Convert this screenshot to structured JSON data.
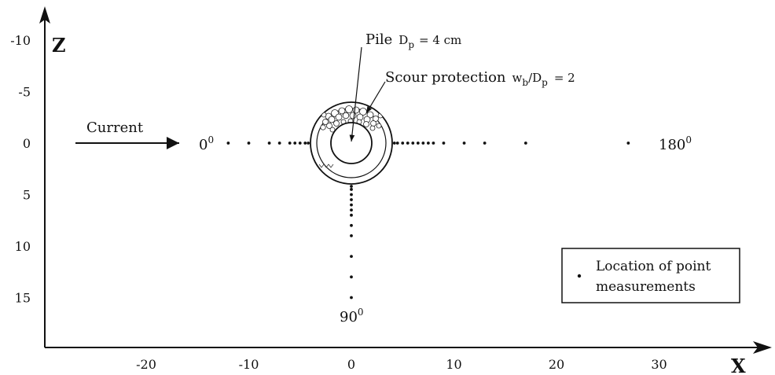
{
  "diagram": {
    "axes": {
      "x_label": "X",
      "z_label": "Z",
      "x_ticks": [
        -20,
        -10,
        0,
        10,
        20,
        30
      ],
      "z_ticks": [
        -10,
        -5,
        0,
        5,
        10,
        15
      ],
      "x_range": [
        -30,
        40
      ],
      "z_range": [
        -13,
        20
      ]
    },
    "pile": {
      "label": "Pile",
      "diameter_label": "D",
      "diameter_sub": "p",
      "diameter_value": "=  4 cm",
      "diameter_cm": 4
    },
    "scour_protection": {
      "label": "Scour protection",
      "ratio_w": "w",
      "ratio_w_sub": "b",
      "ratio_slash": "/D",
      "ratio_d_sub": "p",
      "ratio_value": "=  2"
    },
    "current_label": "Current",
    "angles": {
      "upstream": "0",
      "downstream": "180",
      "side": "90",
      "superscript": "0"
    },
    "legend": {
      "line1": "Location of point",
      "line2": "measurements"
    },
    "measurements": {
      "upstream_x": [
        -12,
        -10,
        -8,
        -7,
        -6,
        -5.5,
        -5,
        -4.5,
        -4.2
      ],
      "downstream_x": [
        4.2,
        4.5,
        5,
        5.5,
        6,
        6.5,
        7,
        7.5,
        8,
        9,
        11,
        13,
        17,
        27
      ],
      "side_z": [
        4.2,
        4.5,
        5,
        5.5,
        6,
        6.5,
        7,
        8,
        9,
        11,
        13,
        15
      ]
    }
  }
}
